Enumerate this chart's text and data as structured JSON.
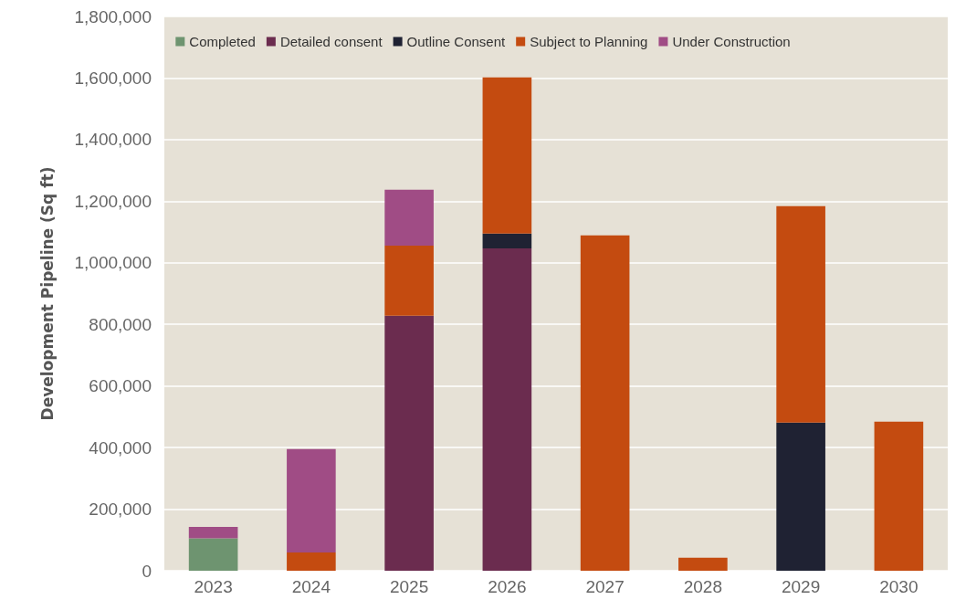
{
  "chart_data": {
    "type": "bar",
    "stacked": true,
    "ylabel": "Development Pipeline (Sq ft)",
    "categories": [
      "2023",
      "2024",
      "2025",
      "2026",
      "2027",
      "2028",
      "2029",
      "2030"
    ],
    "series": [
      {
        "name": "Completed",
        "color": "#6e9470",
        "values": [
          105000,
          null,
          null,
          null,
          null,
          null,
          null,
          null
        ]
      },
      {
        "name": "Detailed consent",
        "color": "#6b2c4f",
        "values": [
          null,
          null,
          828000,
          1047000,
          null,
          null,
          null,
          null
        ]
      },
      {
        "name": "Outline Consent",
        "color": "#1f2233",
        "values": [
          null,
          null,
          null,
          48000,
          null,
          null,
          481000,
          null
        ]
      },
      {
        "name": "Subject to Planning",
        "color": "#c44b10",
        "values": [
          null,
          59000,
          228000,
          507000,
          1089000,
          42000,
          703000,
          484000
        ]
      },
      {
        "name": "Under Construction",
        "color": "#a04c85",
        "values": [
          37000,
          336000,
          181000,
          null,
          null,
          null,
          null,
          null
        ]
      }
    ],
    "ylim": [
      0,
      1800000
    ],
    "yticks": [
      0,
      {
        "value": 200000,
        "label": "200,000"
      },
      {
        "value": 400000,
        "label": "400,000"
      },
      {
        "value": 600000,
        "label": "600,000"
      },
      {
        "value": 800000,
        "label": "800,000"
      },
      {
        "value": 1000000,
        "label": "1,000,000"
      },
      {
        "value": 1200000,
        "label": "1,200,000"
      },
      {
        "value": 1400000,
        "label": "1,400,000"
      },
      {
        "value": 1600000,
        "label": "1,600,000"
      },
      {
        "value": 1800000,
        "label": "1,800,000"
      }
    ],
    "grid": "y",
    "legend": "top"
  }
}
